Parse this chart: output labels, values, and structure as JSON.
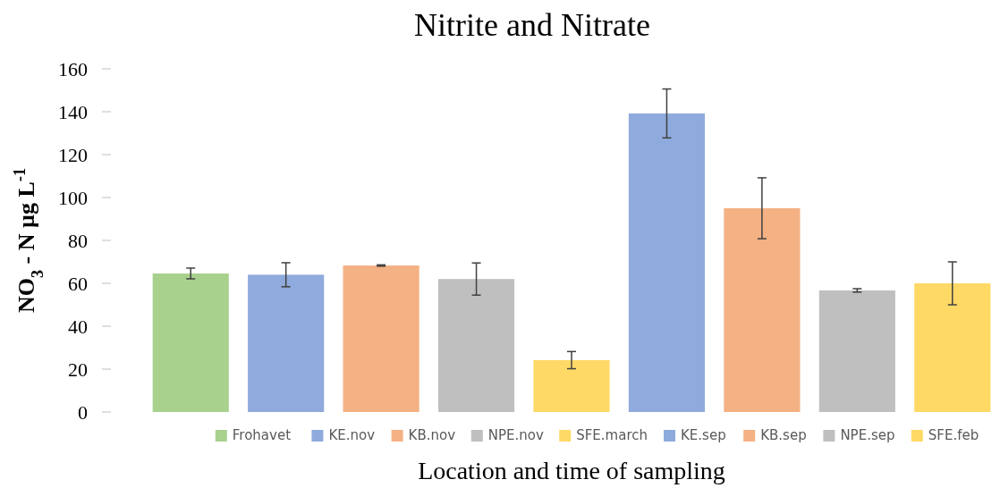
{
  "chart_data": {
    "type": "bar",
    "title": "Nitrite and Nitrate",
    "xlabel": "Location and time of sampling",
    "ylabel": "NO$_{3}$ - N µg L$^{-1}$",
    "categories": [
      null,
      null,
      null,
      null,
      null,
      null,
      null,
      null,
      null
    ],
    "stacked": true,
    "series": [
      {
        "name": "Frohavet",
        "color": "#a9d18e",
        "values": [
          64.6,
          null,
          null,
          null,
          null,
          null,
          null,
          null,
          null
        ],
        "errors": [
          2.5,
          null,
          null,
          null,
          null,
          null,
          null,
          null,
          null
        ]
      },
      {
        "name": "KE.nov",
        "color": "#8faadc",
        "values": [
          null,
          64,
          null,
          null,
          null,
          null,
          null,
          null,
          null
        ],
        "errors": [
          null,
          5.6,
          null,
          null,
          null,
          null,
          null,
          null,
          null
        ]
      },
      {
        "name": "KB.nov",
        "color": "#f4b183",
        "values": [
          null,
          null,
          68.3,
          null,
          null,
          null,
          null,
          null,
          null
        ],
        "errors": [
          null,
          null,
          0.3,
          null,
          null,
          null,
          null,
          null,
          null
        ]
      },
      {
        "name": "NPE.nov",
        "color": "#bfbfbf",
        "values": [
          null,
          null,
          null,
          62,
          null,
          null,
          null,
          null,
          null
        ],
        "errors": [
          null,
          null,
          null,
          7.5,
          null,
          null,
          null,
          null,
          null
        ]
      },
      {
        "name": "SFE.march",
        "color": "#ffd966",
        "values": [
          null,
          null,
          null,
          null,
          24.2,
          null,
          null,
          null,
          null
        ],
        "errors": [
          null,
          null,
          null,
          null,
          4,
          null,
          null,
          null,
          null
        ]
      },
      {
        "name": "KE.sep",
        "color": "#8faadc",
        "values": [
          null,
          null,
          null,
          null,
          null,
          139.2,
          null,
          null,
          null
        ],
        "errors": [
          null,
          null,
          null,
          null,
          null,
          11.4,
          null,
          null,
          null
        ]
      },
      {
        "name": "KB.sep",
        "color": "#f4b183",
        "values": [
          null,
          null,
          null,
          null,
          null,
          null,
          95,
          null,
          null
        ],
        "errors": [
          null,
          null,
          null,
          null,
          null,
          null,
          14.2,
          null,
          null
        ]
      },
      {
        "name": "NPE.sep",
        "color": "#bfbfbf",
        "values": [
          null,
          null,
          null,
          null,
          null,
          null,
          null,
          56.7,
          null
        ],
        "errors": [
          null,
          null,
          null,
          null,
          null,
          null,
          null,
          0.8,
          null
        ]
      },
      {
        "name": "SFE.feb",
        "color": "#ffd966",
        "values": [
          null,
          null,
          null,
          null,
          null,
          null,
          null,
          null,
          60
        ],
        "errors": [
          null,
          null,
          null,
          null,
          null,
          null,
          null,
          null,
          10
        ]
      }
    ],
    "ylim": [
      0,
      160
    ],
    "yticks": [
      0,
      20,
      40,
      60,
      80,
      100,
      120,
      140,
      160
    ],
    "legend": "bottom"
  }
}
